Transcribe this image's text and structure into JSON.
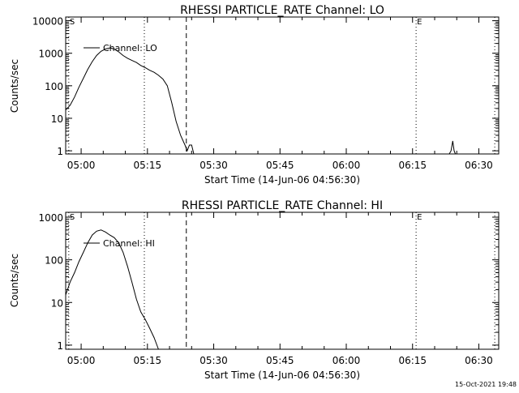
{
  "footer": {
    "timestamp": "15-Oct-2021 19:48"
  },
  "chart_data": [
    {
      "type": "line",
      "title": "RHESSI PARTICLE_RATE Channel: LO",
      "xlabel": "Start Time (14-Jun-06 04:56:30)",
      "ylabel": "Counts/sec",
      "legend_label": "Channel: LO",
      "legend_position": "top-left",
      "scale": "log",
      "x_unit": "minutes after 04:56:30",
      "xlim": [
        0,
        98
      ],
      "ylim": [
        0.8,
        13000
      ],
      "x_ticks": [
        {
          "t": 3.5,
          "label": "05:00"
        },
        {
          "t": 18.5,
          "label": "05:15"
        },
        {
          "t": 33.5,
          "label": "05:30"
        },
        {
          "t": 48.5,
          "label": "05:45"
        },
        {
          "t": 63.5,
          "label": "06:00"
        },
        {
          "t": 78.5,
          "label": "06:15"
        },
        {
          "t": 93.5,
          "label": "06:30"
        }
      ],
      "y_ticks": [
        {
          "v": 1,
          "label": "1"
        },
        {
          "v": 10,
          "label": "10"
        },
        {
          "v": 100,
          "label": "100"
        },
        {
          "v": 1000,
          "label": "1000"
        },
        {
          "v": 10000,
          "label": "10000"
        }
      ],
      "markers": [
        {
          "t": 0.7,
          "style": "dotted",
          "label": "S"
        },
        {
          "t": 17.8,
          "style": "dotted",
          "label": ""
        },
        {
          "t": 27.3,
          "style": "dashed",
          "label": ""
        },
        {
          "t": 79.3,
          "style": "dotted",
          "label": "E"
        },
        {
          "t": 97.1,
          "style": "dotted",
          "label": ""
        }
      ],
      "series": [
        {
          "segments": [
            [
              [
                0,
                18
              ],
              [
                1,
                25
              ],
              [
                2,
                45
              ],
              [
                3,
                90
              ],
              [
                4,
                170
              ],
              [
                5,
                320
              ],
              [
                6,
                550
              ],
              [
                7,
                850
              ],
              [
                8,
                1150
              ],
              [
                9,
                1350
              ],
              [
                10,
                1450
              ],
              [
                11,
                1350
              ],
              [
                12,
                1100
              ],
              [
                13,
                850
              ],
              [
                14,
                700
              ],
              [
                15,
                600
              ],
              [
                16,
                520
              ],
              [
                17,
                420
              ],
              [
                18,
                360
              ],
              [
                19,
                300
              ],
              [
                20,
                260
              ],
              [
                21,
                210
              ],
              [
                22,
                160
              ],
              [
                23,
                100
              ],
              [
                24,
                30
              ],
              [
                25,
                8
              ],
              [
                26,
                3
              ],
              [
                27,
                1.5
              ],
              [
                27.5,
                1
              ],
              [
                28,
                1.5
              ],
              [
                28.5,
                1.5
              ],
              [
                29,
                0.8
              ]
            ],
            [
              [
                86.8,
                0.8
              ],
              [
                87.2,
                1
              ],
              [
                87.6,
                2
              ],
              [
                87.9,
                1
              ],
              [
                88.2,
                0.8
              ]
            ]
          ]
        }
      ]
    },
    {
      "type": "line",
      "title": "RHESSI PARTICLE_RATE Channel: HI",
      "xlabel": "Start Time (14-Jun-06 04:56:30)",
      "ylabel": "Counts/sec",
      "legend_label": "Channel: HI",
      "legend_position": "top-left",
      "scale": "log",
      "x_unit": "minutes after 04:56:30",
      "xlim": [
        0,
        98
      ],
      "ylim": [
        0.8,
        1300
      ],
      "x_ticks": [
        {
          "t": 3.5,
          "label": "05:00"
        },
        {
          "t": 18.5,
          "label": "05:15"
        },
        {
          "t": 33.5,
          "label": "05:30"
        },
        {
          "t": 48.5,
          "label": "05:45"
        },
        {
          "t": 63.5,
          "label": "06:00"
        },
        {
          "t": 78.5,
          "label": "06:15"
        },
        {
          "t": 93.5,
          "label": "06:30"
        }
      ],
      "y_ticks": [
        {
          "v": 1,
          "label": "1"
        },
        {
          "v": 10,
          "label": "10"
        },
        {
          "v": 100,
          "label": "100"
        },
        {
          "v": 1000,
          "label": "1000"
        }
      ],
      "markers": [
        {
          "t": 0.7,
          "style": "dotted",
          "label": "S"
        },
        {
          "t": 17.8,
          "style": "dotted",
          "label": ""
        },
        {
          "t": 27.3,
          "style": "dashed",
          "label": ""
        },
        {
          "t": 79.3,
          "style": "dotted",
          "label": "E"
        },
        {
          "t": 97.1,
          "style": "dotted",
          "label": ""
        }
      ],
      "series": [
        {
          "segments": [
            [
              [
                0,
                15
              ],
              [
                1,
                30
              ],
              [
                2,
                50
              ],
              [
                3,
                90
              ],
              [
                4,
                150
              ],
              [
                5,
                250
              ],
              [
                6,
                380
              ],
              [
                7,
                470
              ],
              [
                8,
                500
              ],
              [
                9,
                450
              ],
              [
                10,
                380
              ],
              [
                11,
                330
              ],
              [
                12,
                250
              ],
              [
                13,
                150
              ],
              [
                14,
                70
              ],
              [
                15,
                30
              ],
              [
                16,
                12
              ],
              [
                17,
                6
              ],
              [
                18,
                4
              ],
              [
                19,
                2.5
              ],
              [
                20,
                1.5
              ],
              [
                21,
                0.8
              ]
            ]
          ]
        }
      ]
    }
  ]
}
